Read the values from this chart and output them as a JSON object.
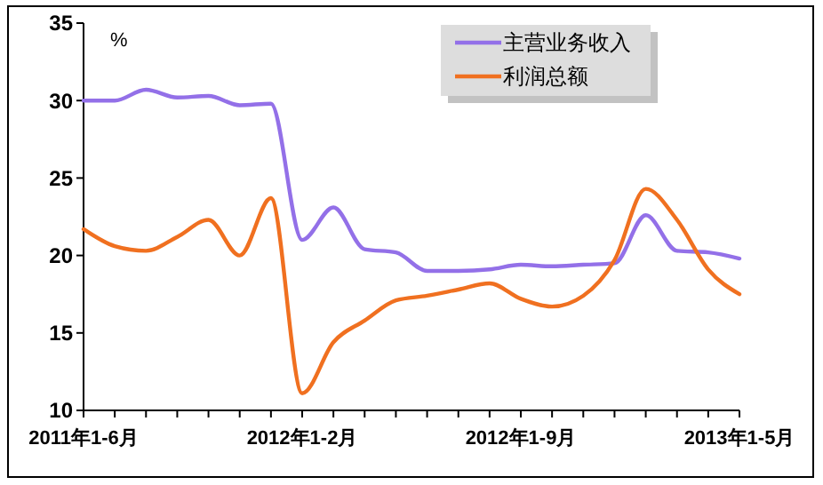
{
  "chart_data": {
    "type": "line",
    "ylabel": "%",
    "categories": [
      "2011年1-6月",
      null,
      null,
      null,
      null,
      null,
      null,
      "2012年1-2月",
      null,
      null,
      null,
      null,
      null,
      null,
      "2012年1-9月",
      null,
      null,
      null,
      null,
      null,
      null,
      "2013年1-5月"
    ],
    "series": [
      {
        "name": "主营业务收入",
        "color": "#9370e8",
        "values": [
          30.0,
          30.0,
          30.7,
          30.2,
          30.3,
          29.7,
          29.8,
          21.0,
          23.1,
          20.4,
          20.2,
          19.0,
          19.0,
          19.1,
          19.4,
          19.3,
          19.4,
          19.5,
          22.6,
          20.3,
          20.2,
          19.8
        ]
      },
      {
        "name": "利润总额",
        "color": "#f07020",
        "values": [
          21.7,
          20.6,
          20.3,
          21.2,
          22.3,
          20.0,
          23.7,
          11.1,
          14.4,
          15.8,
          17.1,
          17.4,
          17.8,
          18.2,
          17.2,
          16.7,
          17.4,
          19.7,
          24.3,
          22.3,
          19.1,
          17.5
        ]
      }
    ],
    "ylim": [
      10,
      35
    ],
    "yticks": [
      10,
      15,
      20,
      25,
      30,
      35
    ],
    "grid": false,
    "legend": "top right",
    "marker": "none",
    "line_style": "solid"
  }
}
